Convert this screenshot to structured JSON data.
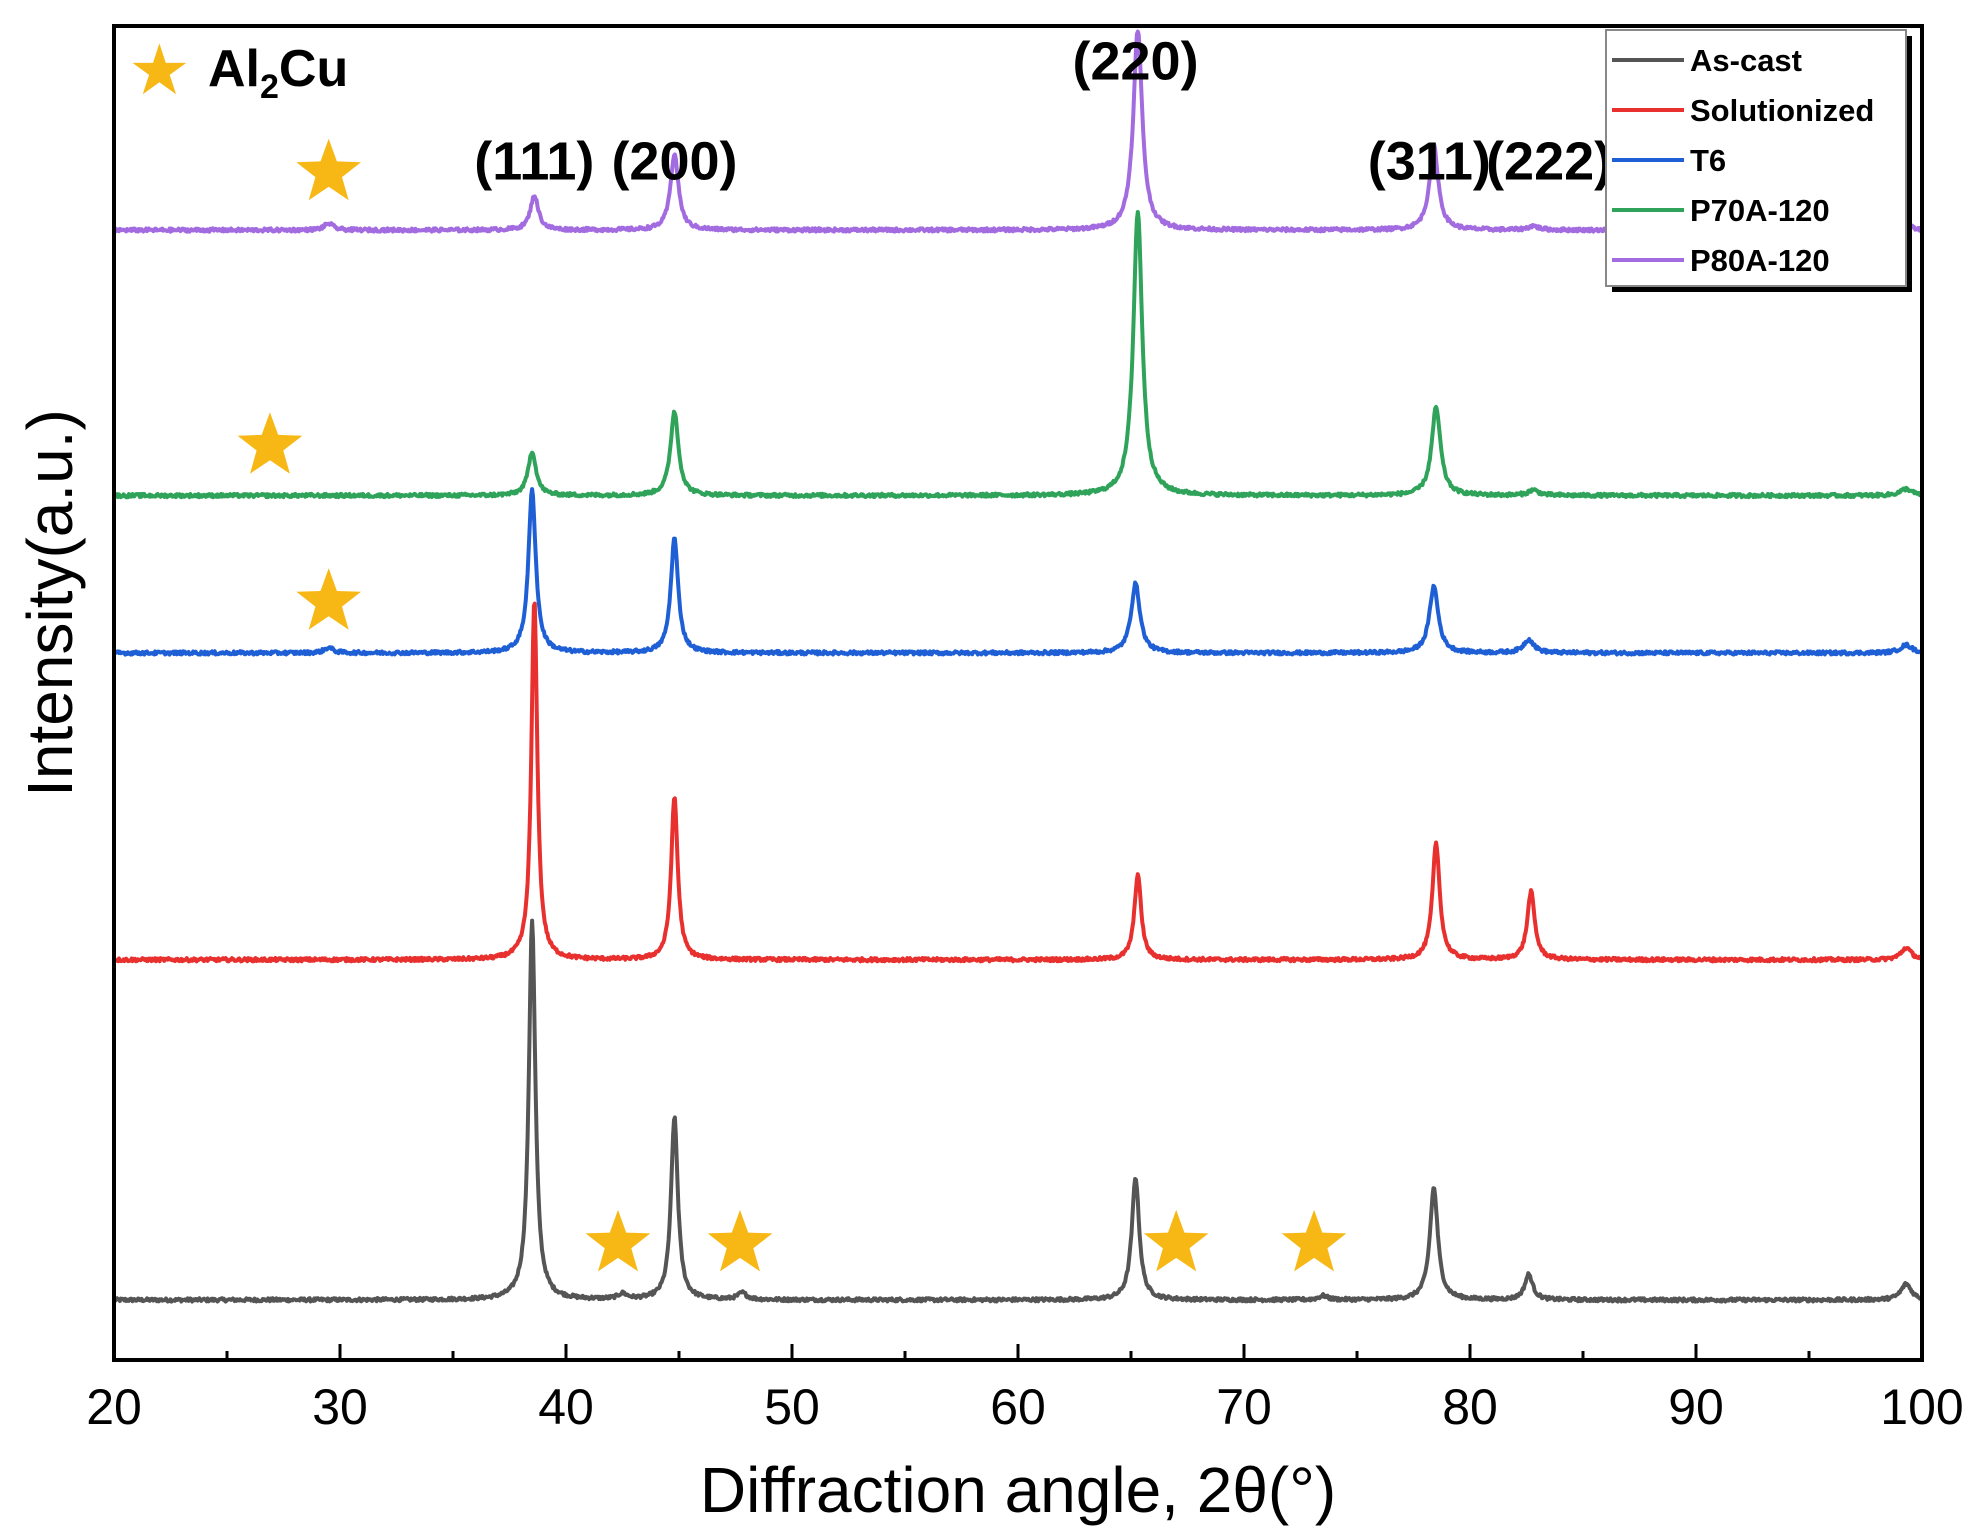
{
  "chart_data": {
    "type": "line",
    "title": "",
    "xlabel": "Diffraction angle, 2θ(°)",
    "ylabel": "Intensity(a.u.)",
    "xlim": [
      20,
      100
    ],
    "ylim": [
      0,
      1
    ],
    "xticks": [
      20,
      30,
      40,
      50,
      60,
      70,
      80,
      90,
      100
    ],
    "xtick_labels": [
      "20",
      "30",
      "40",
      "50",
      "60",
      "70",
      "80",
      "90",
      "100"
    ],
    "y_ticks_shown": false,
    "colors": {
      "As-cast": "#555555",
      "Solutionized": "#e8302f",
      "T6": "#1f5fd6",
      "P70A-120": "#2fa35a",
      "P80A-120": "#a36be0",
      "star": "#f7b816"
    },
    "series": [
      {
        "name": "As-cast",
        "baseline": 0.045,
        "peaks": [
          [
            38.5,
            0.285,
            0.22
          ],
          [
            42.5,
            0.004,
            0.3
          ],
          [
            44.8,
            0.137,
            0.23
          ],
          [
            47.8,
            0.005,
            0.3
          ],
          [
            65.2,
            0.092,
            0.25
          ],
          [
            73.5,
            0.003,
            0.3
          ],
          [
            78.4,
            0.084,
            0.27
          ],
          [
            82.6,
            0.019,
            0.27
          ],
          [
            99.3,
            0.012,
            0.35
          ]
        ]
      },
      {
        "name": "Solutionized",
        "baseline": 0.3,
        "peaks": [
          [
            38.6,
            0.27,
            0.2
          ],
          [
            44.8,
            0.122,
            0.22
          ],
          [
            65.3,
            0.064,
            0.23
          ],
          [
            78.5,
            0.087,
            0.25
          ],
          [
            82.7,
            0.051,
            0.25
          ],
          [
            99.3,
            0.009,
            0.35
          ]
        ]
      },
      {
        "name": "T6",
        "baseline": 0.53,
        "peaks": [
          [
            29.5,
            0.004,
            0.3
          ],
          [
            38.5,
            0.122,
            0.25
          ],
          [
            44.8,
            0.086,
            0.25
          ],
          [
            65.2,
            0.052,
            0.3
          ],
          [
            78.4,
            0.05,
            0.3
          ],
          [
            82.6,
            0.01,
            0.35
          ],
          [
            99.3,
            0.006,
            0.4
          ]
        ]
      },
      {
        "name": "P70A-120",
        "baseline": 0.648,
        "peaks": [
          [
            38.5,
            0.033,
            0.27
          ],
          [
            44.8,
            0.063,
            0.27
          ],
          [
            65.3,
            0.213,
            0.3
          ],
          [
            78.5,
            0.066,
            0.3
          ],
          [
            82.8,
            0.004,
            0.35
          ],
          [
            99.3,
            0.005,
            0.4
          ]
        ]
      },
      {
        "name": "P80A-120",
        "baseline": 0.847,
        "peaks": [
          [
            29.5,
            0.005,
            0.3
          ],
          [
            38.6,
            0.026,
            0.27
          ],
          [
            44.8,
            0.057,
            0.27
          ],
          [
            65.3,
            0.15,
            0.3
          ],
          [
            78.4,
            0.063,
            0.3
          ],
          [
            82.8,
            0.003,
            0.35
          ],
          [
            99.3,
            0.004,
            0.4
          ]
        ]
      }
    ],
    "annotations": {
      "peak_labels": [
        {
          "text": "(111)",
          "x": 38.6,
          "y": 0.885
        },
        {
          "text": "(200)",
          "x": 44.8,
          "y": 0.885
        },
        {
          "text": "(220)",
          "x": 65.2,
          "y": 0.96
        },
        {
          "text": "(311)",
          "x": 78.2,
          "y": 0.885
        },
        {
          "text": "(222)",
          "x": 83.5,
          "y": 0.885
        }
      ],
      "stars": [
        {
          "x": 29.5,
          "y": 0.89
        },
        {
          "x": 26.9,
          "y": 0.685
        },
        {
          "x": 29.5,
          "y": 0.568
        },
        {
          "x": 42.3,
          "y": 0.087
        },
        {
          "x": 47.7,
          "y": 0.087
        },
        {
          "x": 67.0,
          "y": 0.087
        },
        {
          "x": 73.1,
          "y": 0.087
        }
      ],
      "phase_legend": {
        "symbol": "★",
        "text": "Al",
        "subscript": "2",
        "text_after": "Cu"
      }
    },
    "legend": {
      "position": "top-right",
      "entries": [
        "As-cast",
        "Solutionized",
        "T6",
        "P70A-120",
        "P80A-120"
      ]
    }
  }
}
